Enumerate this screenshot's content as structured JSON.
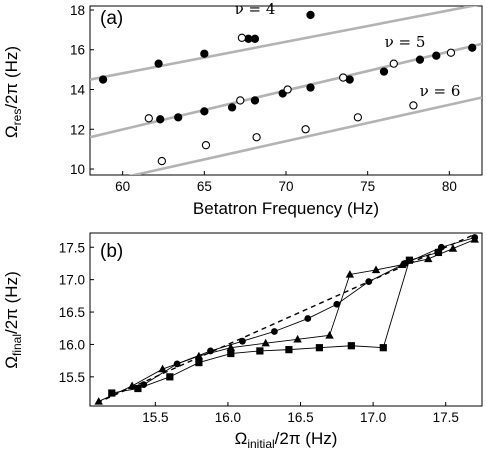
{
  "chart_data": [
    {
      "type": "scatter",
      "panel_label": "(a)",
      "xlabel": "Betatron Frequency (Hz)",
      "ylabel_main": "Ω",
      "ylabel_sub": "res",
      "ylabel_rest": "/2π (Hz)",
      "xlim": [
        58,
        82
      ],
      "ylim": [
        9.7,
        18.2
      ],
      "xticks": [
        60,
        65,
        70,
        75,
        80
      ],
      "yticks": [
        10,
        12,
        14,
        16,
        18
      ],
      "line_color": "#b3b3b3",
      "lines": [
        {
          "label": "ν = 4",
          "x": [
            58,
            82
          ],
          "y": [
            14.5,
            18.3
          ]
        },
        {
          "label": "ν = 5",
          "x": [
            58,
            82
          ],
          "y": [
            11.6,
            16.3
          ]
        },
        {
          "label": "ν = 6",
          "x": [
            58,
            82
          ],
          "y": [
            9.2,
            13.6
          ]
        }
      ],
      "series": [
        {
          "marker": "filled-circle",
          "x": [
            58.8,
            62.2,
            65,
            67.7,
            68.1,
            71.5,
            62.3,
            63.4,
            65,
            66.7,
            68.1,
            69.8,
            71.5,
            73.9,
            76,
            78.2,
            79.2,
            81.4
          ],
          "y": [
            14.5,
            15.3,
            15.8,
            16.55,
            16.55,
            17.75,
            12.5,
            12.6,
            12.9,
            13.1,
            13.45,
            13.8,
            14.1,
            14.5,
            14.9,
            15.5,
            15.7,
            16.1
          ]
        },
        {
          "marker": "open-circle",
          "x": [
            67.3,
            61.6,
            67.2,
            70.1,
            73.5,
            76.6,
            80.1,
            62.4,
            65.1,
            68.2,
            71.2,
            74.4,
            77.8
          ],
          "y": [
            16.6,
            12.55,
            13.45,
            14.0,
            14.6,
            15.3,
            15.85,
            10.4,
            11.2,
            11.6,
            12.0,
            12.6,
            13.2
          ]
        }
      ]
    },
    {
      "type": "line",
      "panel_label": "(b)",
      "xlabel_main": "Ω",
      "xlabel_sub": "initial",
      "xlabel_rest": "/2π (Hz)",
      "ylabel_main": "Ω",
      "ylabel_sub": "final",
      "ylabel_rest": "/2π (Hz)",
      "xlim": [
        15.05,
        17.75
      ],
      "ylim": [
        15.05,
        17.72
      ],
      "xticks": [
        15.5,
        16.0,
        16.5,
        17.0,
        17.5
      ],
      "yticks": [
        15.5,
        16.0,
        16.5,
        17.0,
        17.5
      ],
      "reference": {
        "style": "dashed",
        "x": [
          15.1,
          17.7
        ],
        "y": [
          15.1,
          17.7
        ]
      },
      "series": [
        {
          "marker": "circle",
          "x": [
            15.42,
            15.65,
            15.88,
            16.1,
            16.32,
            16.55,
            16.75,
            16.97,
            17.22,
            17.47,
            17.7
          ],
          "y": [
            15.38,
            15.7,
            15.9,
            16.05,
            16.2,
            16.4,
            16.62,
            16.97,
            17.25,
            17.5,
            17.65
          ]
        },
        {
          "marker": "triangle",
          "x": [
            15.11,
            15.34,
            15.55,
            15.8,
            16.02,
            16.26,
            16.48,
            16.7,
            16.84,
            17.02,
            17.2,
            17.38,
            17.55,
            17.7
          ],
          "y": [
            15.12,
            15.36,
            15.62,
            15.82,
            15.95,
            16.02,
            16.08,
            16.14,
            17.08,
            17.15,
            17.23,
            17.32,
            17.48,
            17.62
          ]
        },
        {
          "marker": "square",
          "x": [
            15.2,
            15.38,
            15.6,
            15.8,
            16.02,
            16.22,
            16.42,
            16.63,
            16.85,
            17.07,
            17.25,
            17.45
          ],
          "y": [
            15.25,
            15.32,
            15.5,
            15.72,
            15.86,
            15.9,
            15.92,
            15.95,
            15.98,
            15.95,
            17.3,
            17.42
          ]
        }
      ]
    }
  ]
}
